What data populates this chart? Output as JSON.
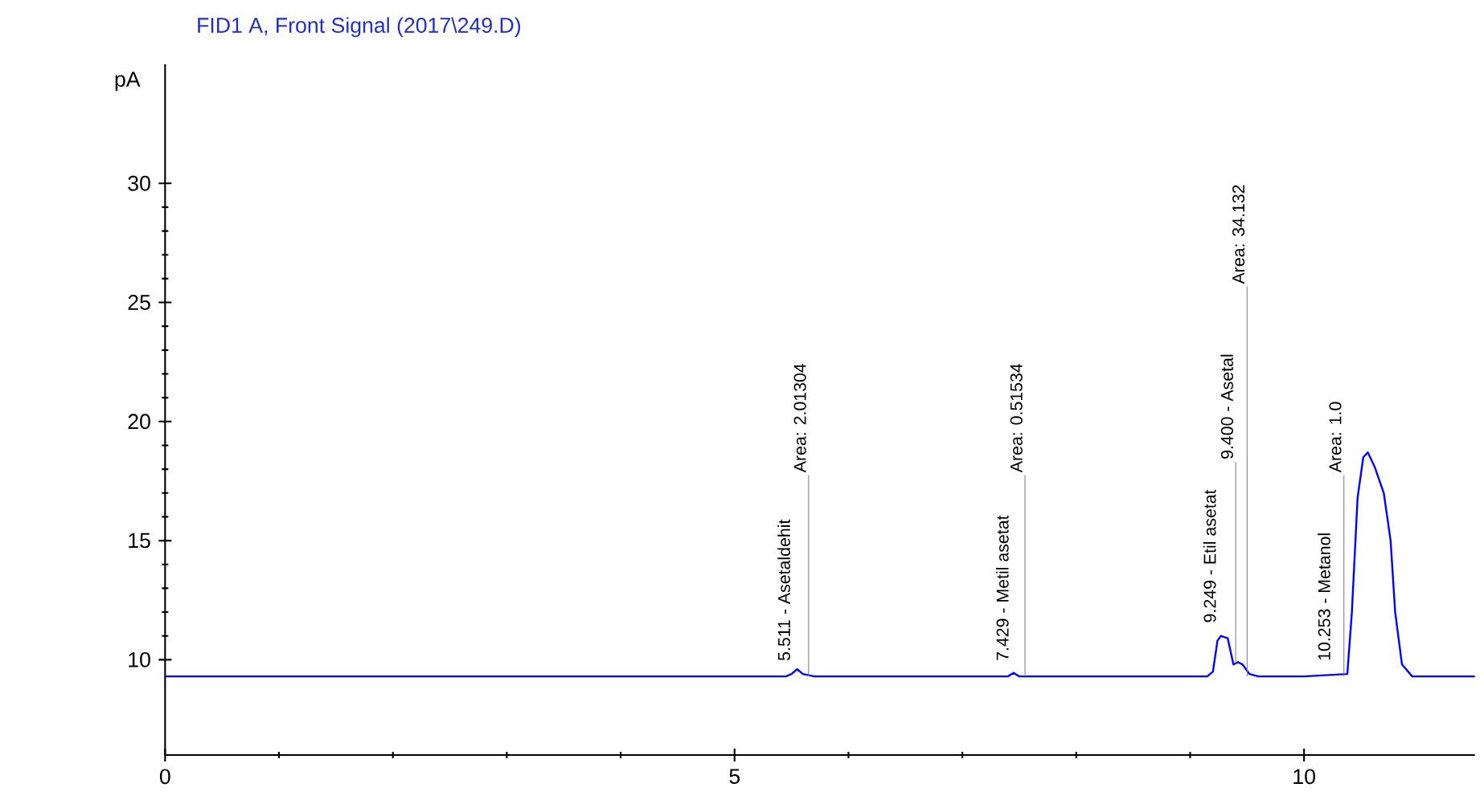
{
  "chart_data": {
    "type": "line",
    "title": "FID1 A, Front Signal (2017\\249.D)",
    "ylabel": "pA",
    "x": [
      0,
      1,
      2,
      3,
      4,
      5,
      5.45,
      5.5,
      5.55,
      5.6,
      5.7,
      6.5,
      7.4,
      7.45,
      7.5,
      8.5,
      9.15,
      9.2,
      9.24,
      9.27,
      9.33,
      9.38,
      9.42,
      9.46,
      9.52,
      9.6,
      10.0,
      10.38,
      10.42,
      10.47,
      10.52,
      10.56,
      10.62,
      10.7,
      10.76,
      10.8,
      10.86,
      10.95,
      11.2,
      11.5
    ],
    "series": [
      {
        "color": "#0000ff",
        "values": [
          9.3,
          9.3,
          9.3,
          9.3,
          9.3,
          9.3,
          9.3,
          9.4,
          9.6,
          9.4,
          9.3,
          9.3,
          9.3,
          9.45,
          9.3,
          9.3,
          9.3,
          9.5,
          10.8,
          11.0,
          10.9,
          9.8,
          9.9,
          9.8,
          9.4,
          9.3,
          9.3,
          9.4,
          12.0,
          16.8,
          18.5,
          18.7,
          18.1,
          17.0,
          15.0,
          12.0,
          9.8,
          9.3,
          9.3,
          9.3
        ]
      }
    ],
    "xlim": [
      0,
      11.5
    ],
    "ylim": [
      6,
      35
    ],
    "xticks": [
      0,
      5,
      10
    ],
    "yticks": [
      10,
      15,
      20,
      25,
      30
    ],
    "grid": false,
    "marker": "none",
    "line_style": "solid",
    "annotations": [
      {
        "text": "5.511 - Asetaldehit",
        "x": 5.511,
        "y": 9.3
      },
      {
        "text": "Area: 2.01304",
        "x": 5.65,
        "y": 9.3
      },
      {
        "text": "7.429 - Metil asetat",
        "x": 7.429,
        "y": 9.3
      },
      {
        "text": "Area: 0.51534",
        "x": 7.55,
        "y": 9.3
      },
      {
        "text": "9.249 - Etil asetat",
        "x": 9.249,
        "y": 10.9
      },
      {
        "text": "9.400 - Asetal",
        "x": 9.4,
        "y": 9.85
      },
      {
        "text": "Area: 34.132",
        "x": 9.5,
        "y": 9.3
      },
      {
        "text": "10.253 - Metanol",
        "x": 10.253,
        "y": 9.3
      },
      {
        "text": "Area: 1.0",
        "x": 10.35,
        "y": 9.3
      }
    ]
  }
}
